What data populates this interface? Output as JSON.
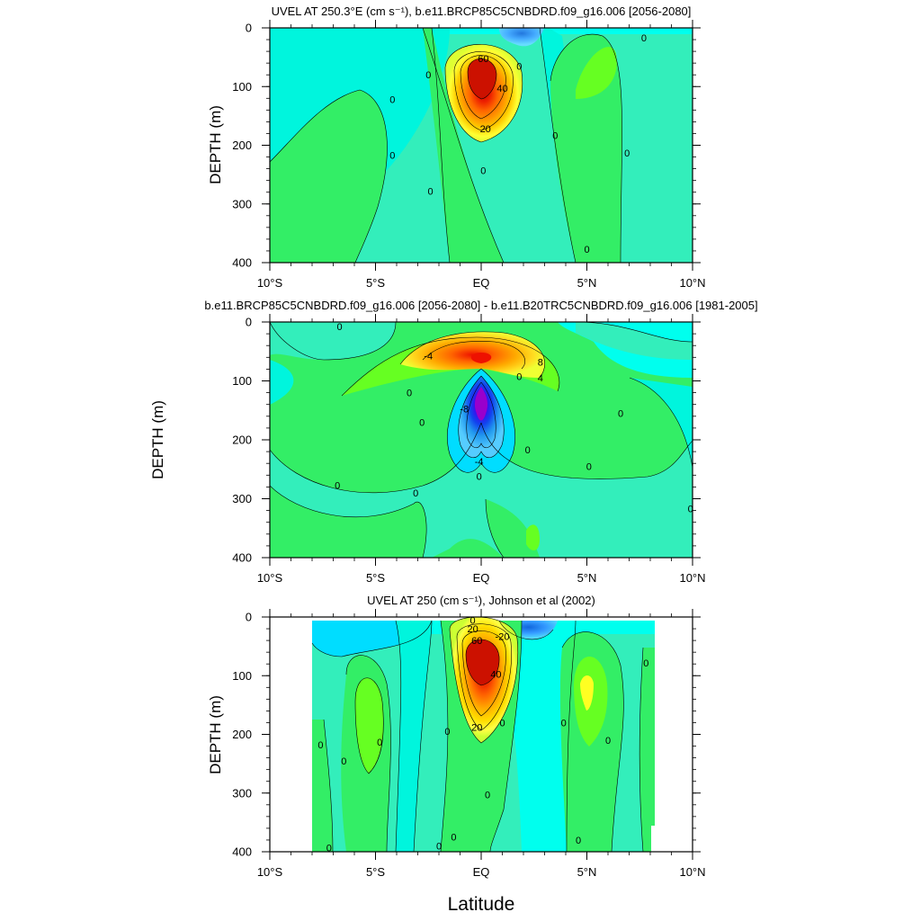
{
  "figure": {
    "xlabel": "Latitude"
  },
  "chart_data": [
    {
      "type": "heatmap",
      "title": "UVEL AT 250.3°E (cm s⁻¹), b.e11.BRCP85C5CNBDRD.f09_g16.006 [2056-2080]",
      "ylabel": "DEPTH (m)",
      "xlabel": "",
      "xlim": [
        -10,
        10
      ],
      "ylim": [
        400,
        0
      ],
      "x_ticks": [
        -10,
        -5,
        0,
        5,
        10
      ],
      "x_tick_labels": [
        "10°S",
        "5°S",
        "EQ",
        "5°N",
        "10°N"
      ],
      "y_ticks": [
        0,
        100,
        200,
        300,
        400
      ],
      "y_tick_labels": [
        "0",
        "100",
        "200",
        "300",
        "400"
      ],
      "contour_labels": [
        {
          "text": "60",
          "x": 0.1,
          "y": 52
        },
        {
          "text": "40",
          "x": 1.0,
          "y": 103
        },
        {
          "text": "20",
          "x": 0.2,
          "y": 172
        },
        {
          "text": "0",
          "x": -4.2,
          "y": 122
        },
        {
          "text": "0",
          "x": -4.2,
          "y": 217
        },
        {
          "text": "0",
          "x": -2.4,
          "y": 278
        },
        {
          "text": "0",
          "x": 0.1,
          "y": 243
        },
        {
          "text": "0",
          "x": -2.5,
          "y": 80
        },
        {
          "text": "0",
          "x": 1.8,
          "y": 65
        },
        {
          "text": "0",
          "x": 3.5,
          "y": 183
        },
        {
          "text": "0",
          "x": 5.0,
          "y": 377
        },
        {
          "text": "0",
          "x": 6.9,
          "y": 213
        },
        {
          "text": "0",
          "x": 7.7,
          "y": 17
        }
      ]
    },
    {
      "type": "heatmap",
      "title": "b.e11.BRCP85C5CNBDRD.f09_g16.006 [2056-2080] - b.e11.B20TRC5CNBDRD.f09_g16.006 [1981-2005]",
      "ylabel": "DEPTH (m)",
      "xlabel": "",
      "xlim": [
        -10,
        10
      ],
      "ylim": [
        400,
        0
      ],
      "x_ticks": [
        -10,
        -5,
        0,
        5,
        10
      ],
      "x_tick_labels": [
        "10°S",
        "5°S",
        "EQ",
        "5°N",
        "10°N"
      ],
      "y_ticks": [
        0,
        100,
        200,
        300,
        400
      ],
      "y_tick_labels": [
        "0",
        "100",
        "200",
        "300",
        "400"
      ],
      "contour_labels": [
        {
          "text": "-4",
          "x": -2.5,
          "y": 57
        },
        {
          "text": "8",
          "x": 2.8,
          "y": 68
        },
        {
          "text": "4",
          "x": 2.8,
          "y": 95
        },
        {
          "text": "0",
          "x": 1.8,
          "y": 92
        },
        {
          "text": "-8",
          "x": -0.8,
          "y": 147
        },
        {
          "text": "-4",
          "x": -0.1,
          "y": 237
        },
        {
          "text": "0",
          "x": -0.1,
          "y": 262
        },
        {
          "text": "0",
          "x": -6.7,
          "y": 8
        },
        {
          "text": "0",
          "x": -3.4,
          "y": 120
        },
        {
          "text": "0",
          "x": -2.8,
          "y": 170
        },
        {
          "text": "0",
          "x": 2.2,
          "y": 217
        },
        {
          "text": "0",
          "x": 5.1,
          "y": 245
        },
        {
          "text": "0",
          "x": 6.6,
          "y": 155
        },
        {
          "text": "0",
          "x": -6.8,
          "y": 277
        },
        {
          "text": "0",
          "x": -3.1,
          "y": 290
        },
        {
          "text": "0",
          "x": 9.9,
          "y": 317
        }
      ]
    },
    {
      "type": "heatmap",
      "title": "UVEL AT 250 (cm s⁻¹), Johnson et al (2002)",
      "ylabel": "DEPTH (m)",
      "xlabel": "",
      "xlim": [
        -10,
        10
      ],
      "ylim": [
        400,
        0
      ],
      "x_ticks": [
        -10,
        -5,
        0,
        5,
        10
      ],
      "x_tick_labels": [
        "10°S",
        "5°S",
        "EQ",
        "5°N",
        "10°N"
      ],
      "y_ticks": [
        0,
        100,
        200,
        300,
        400
      ],
      "y_tick_labels": [
        "0",
        "100",
        "200",
        "300",
        "400"
      ],
      "contour_labels": [
        {
          "text": "60",
          "x": -0.2,
          "y": 40
        },
        {
          "text": "40",
          "x": 0.7,
          "y": 97
        },
        {
          "text": "20",
          "x": -0.2,
          "y": 188
        },
        {
          "text": "20",
          "x": -0.4,
          "y": 20
        },
        {
          "text": "-20",
          "x": 1.0,
          "y": 33
        },
        {
          "text": "0",
          "x": -0.4,
          "y": 5
        },
        {
          "text": "0",
          "x": -7.6,
          "y": 218
        },
        {
          "text": "0",
          "x": -6.5,
          "y": 245
        },
        {
          "text": "0",
          "x": -4.8,
          "y": 213
        },
        {
          "text": "0",
          "x": -1.6,
          "y": 195
        },
        {
          "text": "0",
          "x": 1.0,
          "y": 180
        },
        {
          "text": "0",
          "x": 0.3,
          "y": 303
        },
        {
          "text": "0",
          "x": -2.0,
          "y": 390
        },
        {
          "text": "0",
          "x": -1.3,
          "y": 375
        },
        {
          "text": "0",
          "x": 3.9,
          "y": 180
        },
        {
          "text": "0",
          "x": 4.6,
          "y": 380
        },
        {
          "text": "0",
          "x": 6.0,
          "y": 210
        },
        {
          "text": "0",
          "x": 7.8,
          "y": 78
        },
        {
          "text": "0",
          "x": -7.2,
          "y": 393
        }
      ]
    }
  ]
}
